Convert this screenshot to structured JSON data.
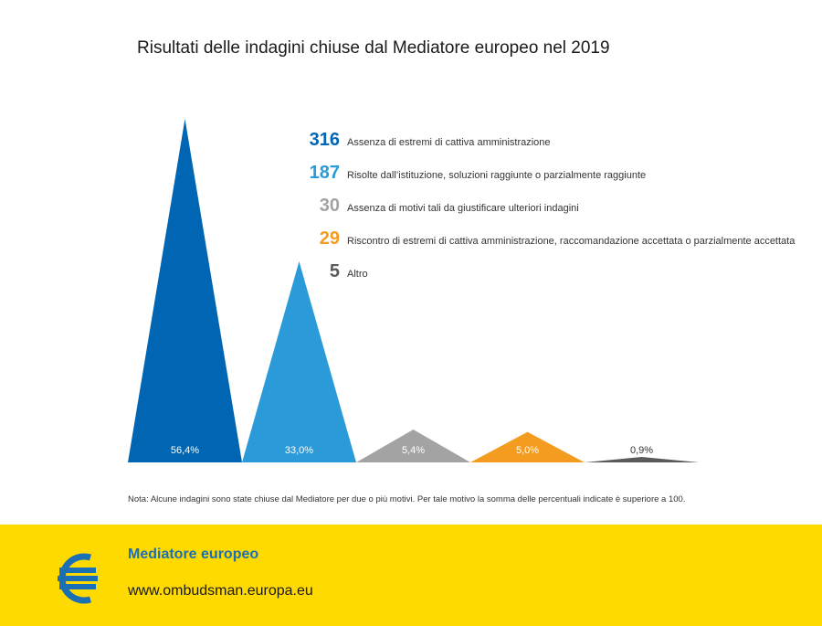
{
  "chart_data": {
    "type": "bar",
    "title": "Risultati delle indagini chiuse dal Mediatore europeo nel 2019",
    "series": [
      {
        "count": "316",
        "label": "Assenza di estremi di cattiva amministrazione",
        "percent_label": "56,4%",
        "value": 56.4,
        "color": "#0066b3"
      },
      {
        "count": "187",
        "label": "Risolte dall’istituzione, soluzioni raggiunte o parzialmente raggiunte",
        "percent_label": "33,0%",
        "value": 33.0,
        "color": "#2a9ad8"
      },
      {
        "count": "30",
        "label": "Assenza di motivi tali da giustificare ulteriori indagini",
        "percent_label": "5,4%",
        "value": 5.4,
        "color": "#a3a3a3"
      },
      {
        "count": "29",
        "label": "Riscontro di estremi di cattiva amministrazione, raccomandazione accettata o parzialmente accettata",
        "percent_label": "5,0%",
        "value": 5.0,
        "color": "#f39c1f"
      },
      {
        "count": "5",
        "label": "Altro",
        "percent_label": "0,9%",
        "value": 0.9,
        "color": "#5a5a5a"
      }
    ],
    "note": "Nota: Alcune indagini sono state chiuse dal Mediatore per due o più motivi. Per tale motivo la somma delle percentuali indicate è superiore a 100."
  },
  "footer": {
    "name": "Mediatore europeo",
    "url": "www.ombudsman.europa.eu"
  }
}
